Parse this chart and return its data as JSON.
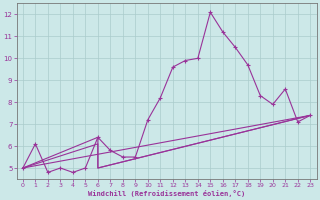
{
  "xlabel": "Windchill (Refroidissement éolien,°C)",
  "background_color": "#cce8e8",
  "grid_color": "#aacccc",
  "line_color": "#993399",
  "spine_color": "#777777",
  "xlim": [
    -0.5,
    23.5
  ],
  "ylim": [
    4.5,
    12.5
  ],
  "yticks": [
    5,
    6,
    7,
    8,
    9,
    10,
    11,
    12
  ],
  "xticks": [
    0,
    1,
    2,
    3,
    4,
    5,
    6,
    7,
    8,
    9,
    10,
    11,
    12,
    13,
    14,
    15,
    16,
    17,
    18,
    19,
    20,
    21,
    22,
    23
  ],
  "main_series": [
    [
      0,
      5.0
    ],
    [
      1,
      6.1
    ],
    [
      2,
      4.8
    ],
    [
      3,
      5.0
    ],
    [
      4,
      4.8
    ],
    [
      5,
      5.0
    ],
    [
      6,
      6.4
    ],
    [
      7,
      5.8
    ],
    [
      8,
      5.5
    ],
    [
      9,
      5.5
    ],
    [
      10,
      7.2
    ],
    [
      11,
      8.2
    ],
    [
      12,
      9.6
    ],
    [
      13,
      9.9
    ],
    [
      14,
      10.0
    ],
    [
      15,
      12.1
    ],
    [
      16,
      11.2
    ],
    [
      17,
      10.5
    ],
    [
      18,
      9.7
    ],
    [
      19,
      8.3
    ],
    [
      20,
      7.9
    ],
    [
      21,
      8.6
    ],
    [
      22,
      7.1
    ],
    [
      23,
      7.4
    ]
  ],
  "straight_line": [
    [
      0,
      5.0
    ],
    [
      23,
      7.4
    ]
  ],
  "tri_line1": [
    [
      0,
      5.0
    ],
    [
      6,
      6.4
    ],
    [
      6,
      5.0
    ],
    [
      23,
      7.4
    ]
  ],
  "tri_line2": [
    [
      0,
      5.0
    ],
    [
      6,
      6.1
    ],
    [
      6,
      5.0
    ],
    [
      23,
      7.4
    ]
  ]
}
